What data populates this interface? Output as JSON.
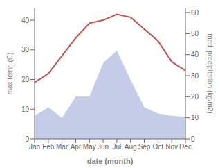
{
  "chart_data": {
    "type": "line",
    "xlabel": "date (month)",
    "ylabel": "max temp (C)",
    "y2label": "med. precipitation (kg/m2)",
    "categories": [
      "Jan",
      "Feb",
      "Mar",
      "Apr",
      "May",
      "Jun",
      "Jul",
      "Aug",
      "Sep",
      "Oct",
      "Nov",
      "Dec"
    ],
    "series": [
      {
        "type": "area",
        "axis": "y2",
        "color": "#c5cce8",
        "values": [
          11,
          15,
          10,
          20,
          20,
          36,
          42,
          28,
          15,
          12,
          11,
          10.5
        ]
      },
      {
        "type": "line",
        "color": "#c0504d",
        "values": [
          19,
          22,
          28,
          34,
          39,
          40,
          42,
          41,
          37,
          33,
          26,
          23
        ]
      }
    ],
    "ylim": [
      0,
      44
    ],
    "yticks": [
      0,
      10,
      20,
      30,
      40
    ],
    "y2lim": [
      0,
      62
    ],
    "y2ticks": [
      0,
      10,
      20,
      30,
      40,
      50,
      60
    ],
    "grid": false
  }
}
